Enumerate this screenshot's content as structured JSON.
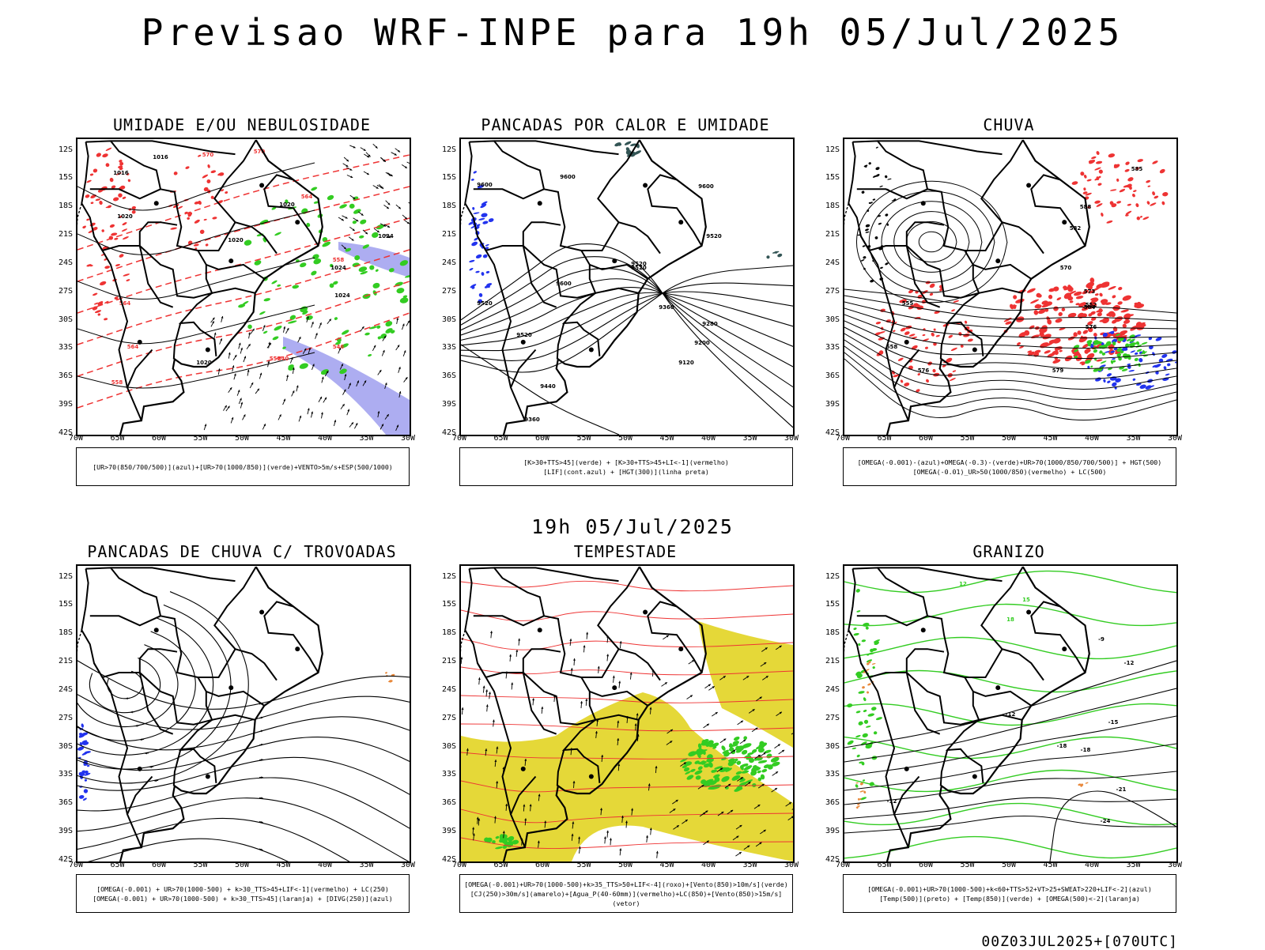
{
  "header": {
    "title": "Previsao WRF-INPE  para 19h 05/Jul/2025"
  },
  "middle": {
    "title": "19h 05/Jul/2025"
  },
  "footer": {
    "run": "00Z03JUL2025+[070UTC]"
  },
  "axes": {
    "lat_labels": [
      "12S",
      "15S",
      "18S",
      "21S",
      "24S",
      "27S",
      "30S",
      "33S",
      "36S",
      "39S",
      "42S"
    ],
    "lon_labels": [
      "70W",
      "65W",
      "60W",
      "55W",
      "50W",
      "45W",
      "40W",
      "35W",
      "30W"
    ]
  },
  "colors": {
    "frame": "#000000",
    "green": "#33cc22",
    "red": "#ee3333",
    "blue": "#2233ee",
    "lavender": "#9999ee",
    "yellow": "#e5d838",
    "orange": "#e8883a",
    "teal": "#335555"
  },
  "panels": [
    {
      "id": "umidade",
      "title": "UMIDADE E/OU NEBULOSIDADE",
      "caption": [
        "[UR>70(850/700/500)](azul)+[UR>70(1000/850)](verde)+VENTO>5m/s+ESP(500/1000)"
      ],
      "contour_labels": [
        "1016",
        "1016",
        "1020",
        "1020",
        "1020",
        "1024",
        "1024",
        "1024",
        "1020",
        "1016",
        "570",
        "570",
        "564",
        "558",
        "558",
        "552",
        "546",
        "540",
        "564",
        "564"
      ]
    },
    {
      "id": "pancadas-calor",
      "title": "PANCADAS POR CALOR E UMIDADE",
      "caption": [
        "[K>30+TTS>45](verde) + [K>30+TTS>45+LI<-1](vermelho)",
        "[LIF](cont.azul) + [HGT(300)](linha preta)"
      ],
      "contour_labels": [
        "9600",
        "9600",
        "9600",
        "9520",
        "9520",
        "9520",
        "9600",
        "9440",
        "9360",
        "9360",
        "9280",
        "9200",
        "9120",
        "9520",
        "9520",
        "9440"
      ]
    },
    {
      "id": "chuva",
      "title": "CHUVA",
      "caption": [
        "[OMEGA(-0.001)-(azul)+OMEGA(-0.3)-(verde)+UR>70(1000/850/700/500)] + HGT(500)",
        "[OMEGA(-0.01)_UR>50(1000/850)(vermelho) + LC(500)"
      ],
      "contour_labels": [
        "588",
        "582",
        "576",
        "570",
        "564",
        "558",
        "552",
        "573",
        "579",
        "576",
        "555",
        "585"
      ]
    },
    {
      "id": "trovoadas",
      "title": "PANCADAS DE CHUVA C/ TROVOADAS",
      "caption": [
        "[OMEGA(-0.001) + UR>70(1000-500) + k>30_TTS>45+LIF<-1](vermelho) + LC(250)",
        "[OMEGA(-0.001) + UR>70(1000-500) + k>30_TTS>45](laranja) + [DIVG(250)](azul)"
      ],
      "contour_labels": []
    },
    {
      "id": "tempestade",
      "title": "TEMPESTADE",
      "caption": [
        "[OMEGA(-0.001)+UR>70(1000-500)+k>35_TTS>50+LIF<-4](roxo)+[Vento(850)>10m/s](verde)",
        "[CJ(250)>30m/s](amarelo)+[Agua_P(40-60mm)](vermelho)+LC(850)+[Vento(850)>15m/s](vetor)"
      ],
      "contour_labels": []
    },
    {
      "id": "granizo",
      "title": "GRANIZO",
      "caption": [
        "[OMEGA(-0.001)+UR>70(1000-500)+k<60+TTS>52+VT>25+SWEAT>220+LIF<-2](azul)",
        "[Temp(500)](preto) + [Temp(850)](verde) + [OMEGA(500)<-2](laranja)"
      ],
      "contour_labels": [
        "-12",
        "-12",
        "-18",
        "-18",
        "-21",
        "-24",
        "-9",
        "-12",
        "-15",
        "12",
        "15",
        "18"
      ]
    }
  ]
}
